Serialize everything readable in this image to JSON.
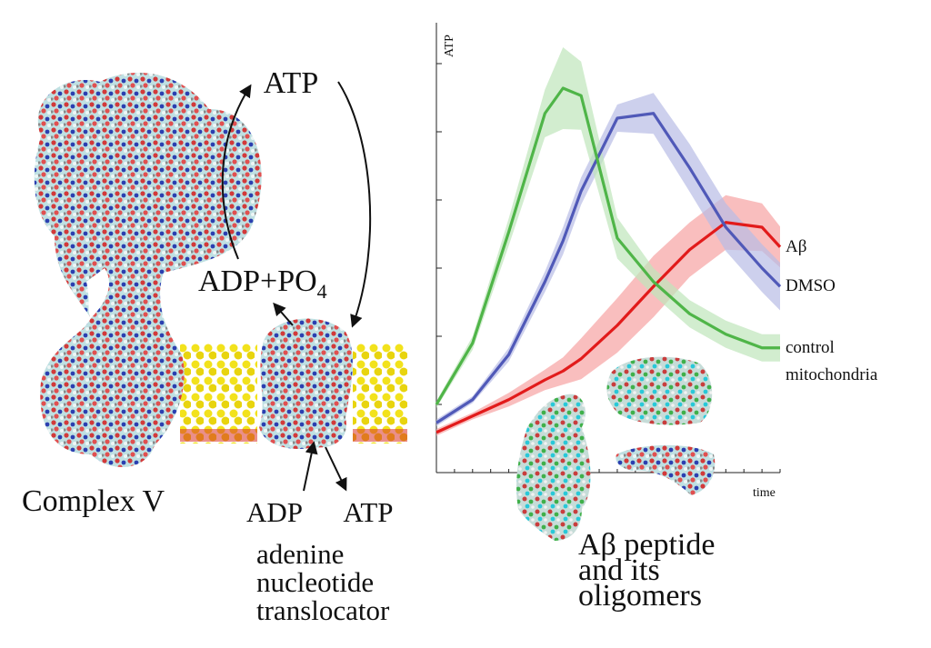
{
  "diagram": {
    "cycle_top": "ATP",
    "cycle_bottom": {
      "text": "ADP+PO",
      "subscript": "4"
    },
    "complex": "Complex V",
    "translocator_in": "ADP",
    "translocator_out": "ATP",
    "translocator": [
      "adenine",
      "nucleotide",
      "translocator"
    ],
    "peptide": [
      "Aβ peptide",
      "and its",
      "oligomers"
    ]
  },
  "chart_data": {
    "type": "line",
    "y_label": "ATP",
    "x_label": "time",
    "x": [
      0,
      2,
      4,
      6,
      7,
      8,
      10,
      12,
      14,
      16,
      18,
      19
    ],
    "xlim": [
      0,
      19
    ],
    "xticks": [
      0,
      1,
      2,
      3,
      4,
      5,
      6,
      7,
      8,
      9,
      10,
      11,
      12,
      13,
      14,
      15,
      16,
      17,
      18,
      19
    ],
    "ylim": [
      0,
      6.6
    ],
    "yticks": [
      0,
      1,
      2,
      3,
      4,
      5,
      6
    ],
    "series": [
      {
        "name": "Aβ",
        "color": "#e21b1b",
        "band_color": "#f7a3a3",
        "values": [
          0.59,
          0.83,
          1.07,
          1.36,
          1.49,
          1.67,
          2.16,
          2.73,
          3.27,
          3.67,
          3.6,
          3.31
        ],
        "errors": [
          0.05,
          0.05,
          0.1,
          0.15,
          0.2,
          0.3,
          0.4,
          0.45,
          0.4,
          0.4,
          0.35,
          0.3
        ]
      },
      {
        "name": "DMSO",
        "color": "#5059b8",
        "band_color": "#b8bce6",
        "values": [
          0.73,
          1.07,
          1.73,
          2.8,
          3.4,
          4.13,
          5.2,
          5.27,
          4.47,
          3.6,
          3.0,
          2.73
        ],
        "errors": [
          0.05,
          0.05,
          0.1,
          0.15,
          0.2,
          0.2,
          0.2,
          0.3,
          0.35,
          0.35,
          0.35,
          0.35
        ]
      },
      {
        "name": "control mitochondria",
        "color": "#4fb548",
        "band_color": "#bfe6bb",
        "values": [
          1.0,
          1.9,
          3.53,
          5.27,
          5.64,
          5.53,
          3.44,
          2.8,
          2.33,
          2.03,
          1.83,
          1.83
        ],
        "errors": [
          0.05,
          0.1,
          0.2,
          0.35,
          0.6,
          0.5,
          0.3,
          0.2,
          0.2,
          0.2,
          0.2,
          0.2
        ]
      }
    ]
  }
}
